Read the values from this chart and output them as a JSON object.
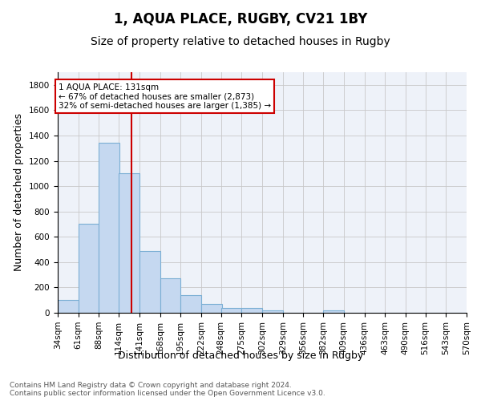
{
  "title": "1, AQUA PLACE, RUGBY, CV21 1BY",
  "subtitle": "Size of property relative to detached houses in Rugby",
  "xlabel": "Distribution of detached houses by size in Rugby",
  "ylabel": "Number of detached properties",
  "footer_line1": "Contains HM Land Registry data © Crown copyright and database right 2024.",
  "footer_line2": "Contains public sector information licensed under the Open Government Licence v3.0.",
  "bins": [
    34,
    61,
    88,
    114,
    141,
    168,
    195,
    222,
    248,
    275,
    302,
    329,
    356,
    382,
    409,
    436,
    463,
    490,
    516,
    543,
    570
  ],
  "bar_values": [
    100,
    700,
    1340,
    1100,
    490,
    270,
    140,
    70,
    35,
    35,
    20,
    0,
    0,
    20,
    0,
    0,
    0,
    0,
    0,
    0
  ],
  "bar_color": "#c5d8f0",
  "bar_edge_color": "#7bafd4",
  "red_line_x": 131,
  "annotation_title": "1 AQUA PLACE: 131sqm",
  "annotation_line1": "← 67% of detached houses are smaller (2,873)",
  "annotation_line2": "32% of semi-detached houses are larger (1,385) →",
  "annotation_box_color": "#ffffff",
  "annotation_border_color": "#cc0000",
  "ylim": [
    0,
    1900
  ],
  "yticks": [
    0,
    200,
    400,
    600,
    800,
    1000,
    1200,
    1400,
    1600,
    1800
  ],
  "background_color": "#ffffff",
  "axes_background": "#eef2f9",
  "grid_color": "#c8c8c8",
  "title_fontsize": 12,
  "subtitle_fontsize": 10,
  "xlabel_fontsize": 9,
  "ylabel_fontsize": 9,
  "tick_fontsize": 7.5,
  "footer_fontsize": 6.5
}
